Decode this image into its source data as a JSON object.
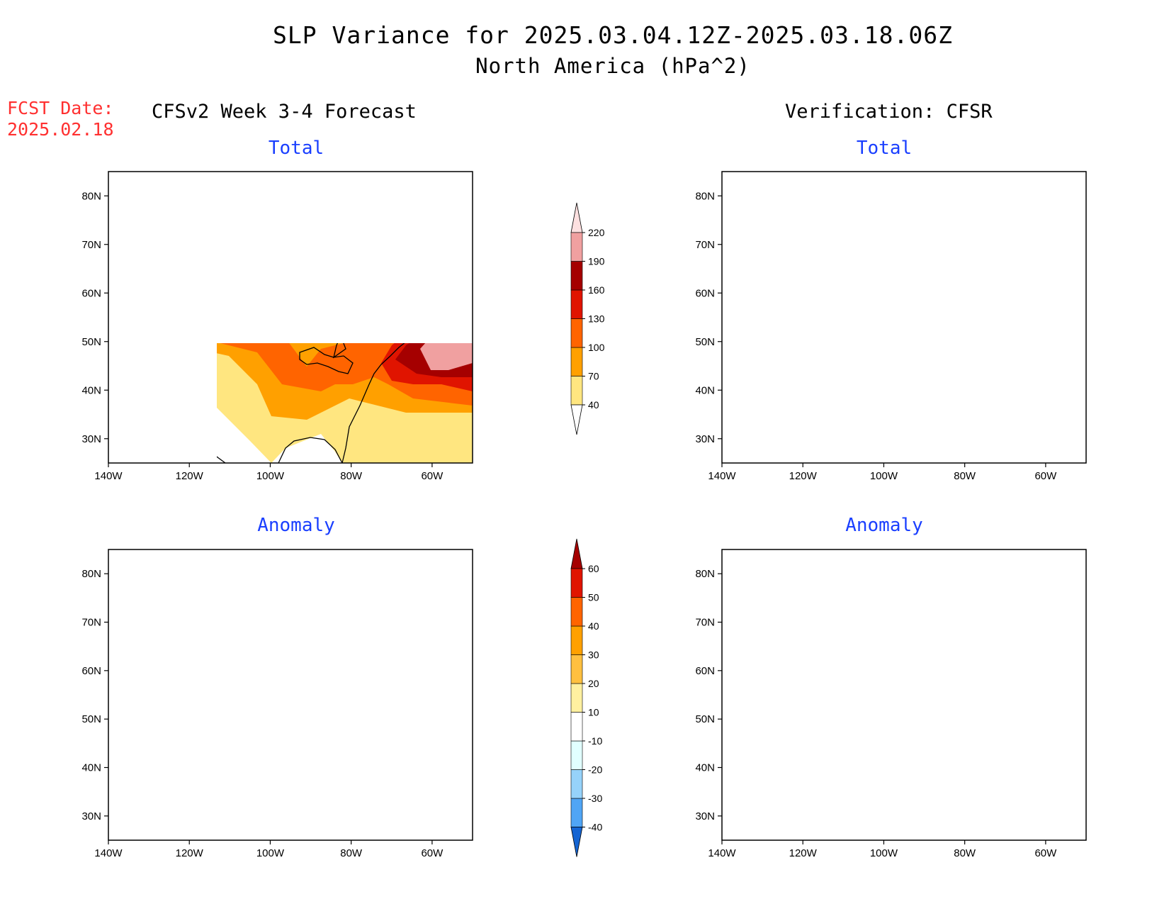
{
  "title_line1": "SLP Variance for 2025.03.04.12Z-2025.03.18.06Z",
  "title_line2": "North America (hPa^2)",
  "fcst_label": "FCST Date:",
  "fcst_date": "2025.02.18",
  "left_heading": "CFSv2 Week 3-4 Forecast",
  "right_heading": "Verification: CFSR",
  "panels": {
    "forecast_total": {
      "title": "Total"
    },
    "verif_total": {
      "title": "Total"
    },
    "forecast_anomaly": {
      "title": "Anomaly"
    },
    "verif_anomaly": {
      "title": "Anomaly"
    }
  },
  "lat_ticks": [
    "80N",
    "70N",
    "60N",
    "50N",
    "40N",
    "30N"
  ],
  "lon_ticks": [
    "140W",
    "120W",
    "100W",
    "80W",
    "60W"
  ],
  "total_colorbar": {
    "levels": [
      "40",
      "70",
      "100",
      "130",
      "160",
      "190",
      "220"
    ],
    "colors": [
      "#ffe680",
      "#ffa000",
      "#ff6400",
      "#e01400",
      "#a50000",
      "#f0a0a0",
      "#fde0e0"
    ]
  },
  "anomaly_colorbar": {
    "levels": [
      "-40",
      "-30",
      "-20",
      "-10",
      "10",
      "20",
      "30",
      "40",
      "50",
      "60"
    ],
    "colors": [
      "#1464d2",
      "#50a5f5",
      "#96d2fa",
      "#e1ffff",
      "#ffffff",
      "#fff0a0",
      "#ffc040",
      "#ffa000",
      "#ff6400",
      "#e01400",
      "#a50000"
    ]
  }
}
